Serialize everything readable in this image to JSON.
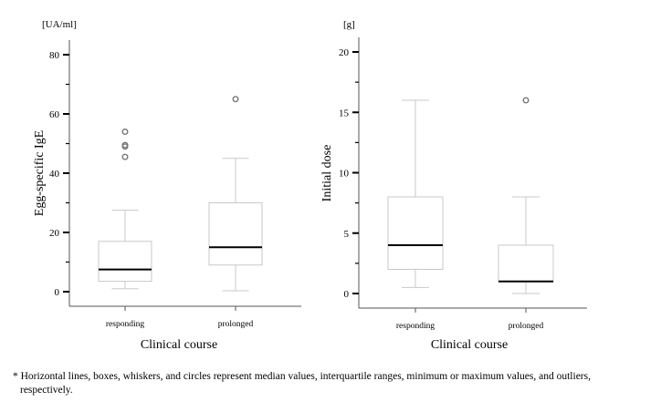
{
  "chart_data": [
    {
      "type": "box",
      "ylabel": "Egg-specific IgE",
      "unit": "[UA/ml]",
      "xlabel": "Clinical course",
      "ylim": [
        0,
        80
      ],
      "yticks": [
        0,
        20,
        40,
        60,
        80
      ],
      "categories": [
        "responding",
        "prolonged"
      ],
      "boxes": [
        {
          "category": "responding",
          "min": 1,
          "q1": 3.5,
          "median": 7.5,
          "q3": 17,
          "max": 27.5,
          "outliers": [
            45.5,
            49,
            49.5,
            54
          ]
        },
        {
          "category": "prolonged",
          "min": 0.3,
          "q1": 9,
          "median": 15,
          "q3": 30,
          "max": 45,
          "outliers": [
            65
          ]
        }
      ]
    },
    {
      "type": "box",
      "ylabel": "Initial dose",
      "unit": "[g]",
      "xlabel": "Clinical course",
      "ylim": [
        0,
        20
      ],
      "yticks": [
        0,
        5,
        10,
        15,
        20
      ],
      "categories": [
        "responding",
        "prolonged"
      ],
      "boxes": [
        {
          "category": "responding",
          "min": 0.5,
          "q1": 2,
          "median": 4,
          "q3": 8,
          "max": 16,
          "outliers": []
        },
        {
          "category": "prolonged",
          "min": 0,
          "q1": 1,
          "median": 1,
          "q3": 4,
          "max": 8,
          "outliers": [
            16
          ]
        }
      ]
    }
  ],
  "footnote": {
    "line1": "* Horizontal lines, boxes, whiskers, and circles represent median values, interquartile ranges, minimum or maximum values, and outliers,",
    "line2": "respectively."
  }
}
